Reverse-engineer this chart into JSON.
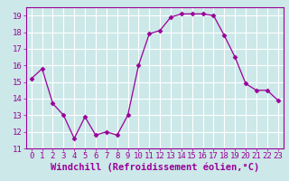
{
  "x": [
    0,
    1,
    2,
    3,
    4,
    5,
    6,
    7,
    8,
    9,
    10,
    11,
    12,
    13,
    14,
    15,
    16,
    17,
    18,
    19,
    20,
    21,
    22,
    23
  ],
  "y": [
    15.2,
    15.8,
    13.7,
    13.0,
    11.6,
    12.9,
    11.8,
    12.0,
    11.8,
    13.0,
    16.0,
    17.9,
    18.1,
    18.9,
    19.1,
    19.1,
    19.1,
    19.0,
    17.8,
    16.5,
    14.9,
    14.5,
    14.5,
    13.9
  ],
  "line_color": "#990099",
  "marker": "D",
  "marker_size": 2.5,
  "bg_color": "#cce8e8",
  "grid_color": "#ffffff",
  "xlabel": "Windchill (Refroidissement éolien,°C)",
  "xlabel_color": "#990099",
  "xlabel_fontsize": 7.5,
  "tick_color": "#990099",
  "tick_fontsize": 6.5,
  "ylim": [
    11,
    19.5
  ],
  "xlim": [
    -0.5,
    23.5
  ],
  "yticks": [
    11,
    12,
    13,
    14,
    15,
    16,
    17,
    18,
    19
  ],
  "xticks": [
    0,
    1,
    2,
    3,
    4,
    5,
    6,
    7,
    8,
    9,
    10,
    11,
    12,
    13,
    14,
    15,
    16,
    17,
    18,
    19,
    20,
    21,
    22,
    23
  ]
}
